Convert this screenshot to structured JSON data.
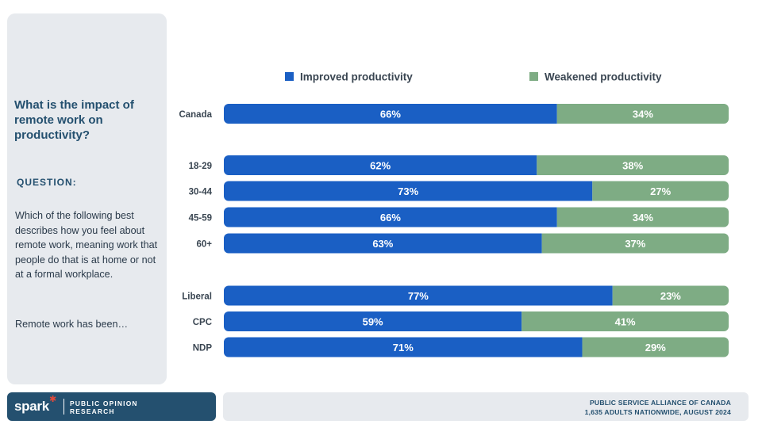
{
  "sidebar": {
    "title": "What is the impact of remote work on productivity?",
    "question_label": "QUESTION:",
    "question_text": "Which of the following best describes how you feel about remote work, meaning work that people do that is at home or not at a formal workplace.",
    "prompt": "Remote work has been…"
  },
  "logo": {
    "word": "spark",
    "subtitle_line1": "PUBLIC OPINION",
    "subtitle_line2": "RESEARCH"
  },
  "footer": {
    "line1": "PUBLIC SERVICE ALLIANCE OF CANADA",
    "line2": "1,635 ADULTS NATIONWIDE, AUGUST 2024"
  },
  "colors": {
    "improved": "#1a5fc4",
    "weakened": "#7eac84",
    "panel": "#e7eaee",
    "title": "#24506f"
  },
  "chart_data": {
    "type": "bar",
    "orientation": "horizontal",
    "stacked": "100%",
    "categories": [
      "Canada",
      "18-29",
      "30-44",
      "45-59",
      "60+",
      "Liberal",
      "CPC",
      "NDP"
    ],
    "groups": [
      [
        "Canada"
      ],
      [
        "18-29",
        "30-44",
        "45-59",
        "60+"
      ],
      [
        "Liberal",
        "CPC",
        "NDP"
      ]
    ],
    "series": [
      {
        "name": "Improved productivity",
        "values": [
          66,
          62,
          73,
          66,
          63,
          77,
          59,
          71
        ],
        "labels": [
          "66%",
          "62%",
          "73%",
          "66%",
          "63%",
          "77%",
          "59%",
          "71%"
        ]
      },
      {
        "name": "Weakened productivity",
        "values": [
          34,
          38,
          27,
          34,
          37,
          23,
          41,
          29
        ],
        "labels": [
          "34%",
          "38%",
          "27%",
          "34%",
          "37%",
          "23%",
          "41%",
          "29%"
        ]
      }
    ],
    "xlim": [
      0,
      100
    ],
    "legend": "top",
    "grid": false
  }
}
